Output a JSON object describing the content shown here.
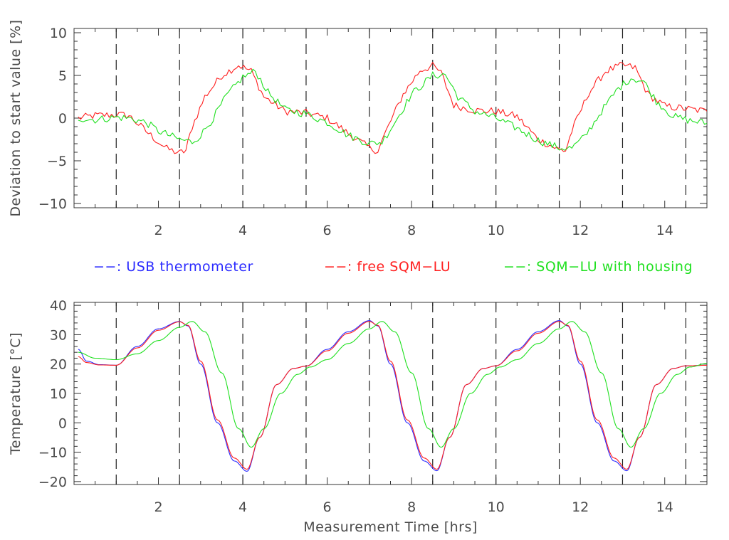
{
  "colors": {
    "usb": "#2b2bff",
    "free": "#ff2020",
    "housing": "#20e020",
    "axis": "#333333",
    "text": "#4a4a4a"
  },
  "legend": [
    {
      "key": "usb",
      "label": "−−: USB thermometer"
    },
    {
      "key": "free",
      "label": "−−: free SQM−LU"
    },
    {
      "key": "housing",
      "label": "−−: SQM−LU with housing"
    }
  ],
  "chart_data": [
    {
      "type": "line",
      "ylabel": "Deviation to start value [%]",
      "xlabel": "",
      "xlim": [
        0,
        15
      ],
      "ylim": [
        -10.5,
        10.5
      ],
      "xticks": [
        2,
        4,
        6,
        8,
        10,
        12,
        14
      ],
      "yticks": [
        10,
        5,
        0,
        -5,
        -10
      ],
      "ytick_labels": [
        "10",
        "5",
        "0",
        "−5",
        "−10"
      ],
      "vlines": [
        1,
        2.5,
        4,
        5.5,
        7,
        8.5,
        10,
        11.5,
        13,
        14.5
      ],
      "series": [
        {
          "key": "free",
          "color": "#ff2020",
          "x": [
            0.1,
            0.5,
            1.0,
            1.3,
            1.7,
            2.0,
            2.2,
            2.5,
            2.65,
            2.8,
            3.1,
            3.5,
            3.9,
            4.2,
            4.5,
            5.0,
            5.5,
            6.0,
            6.5,
            7.0,
            7.2,
            7.4,
            7.8,
            8.2,
            8.5,
            8.7,
            9.0,
            9.5,
            10.0,
            10.5,
            11.0,
            11.5,
            11.65,
            11.8,
            12.2,
            12.6,
            13.0,
            13.3,
            13.6,
            14.0,
            14.5,
            15.0
          ],
          "y": [
            0,
            0.3,
            0.4,
            0.3,
            -1.5,
            -2.8,
            -3.6,
            -4.1,
            -3.8,
            -1.0,
            2.5,
            5.0,
            6.2,
            5.5,
            2.5,
            0.8,
            0.6,
            0,
            -1.8,
            -3.5,
            -3.8,
            -1.5,
            2.8,
            5.6,
            6.1,
            5.3,
            1.5,
            0.9,
            0.8,
            0.2,
            -2.5,
            -3.7,
            -3.8,
            -1.5,
            3.0,
            5.5,
            6.2,
            5.9,
            2.8,
            1.4,
            1.1,
            0.8
          ]
        },
        {
          "key": "housing",
          "color": "#20e020",
          "x": [
            0.1,
            0.5,
            1.0,
            1.3,
            1.7,
            2.0,
            2.5,
            2.8,
            3.0,
            3.3,
            3.6,
            4.0,
            4.3,
            4.6,
            5.0,
            5.5,
            6.0,
            6.5,
            7.0,
            7.3,
            7.6,
            8.0,
            8.5,
            8.8,
            9.1,
            9.5,
            10.0,
            10.5,
            11.0,
            11.5,
            11.8,
            12.1,
            12.5,
            12.9,
            13.2,
            13.5,
            13.8,
            14.2,
            14.6,
            15.0
          ],
          "y": [
            0,
            -0.2,
            0.1,
            0.0,
            -0.5,
            -1.5,
            -2.5,
            -2.8,
            -2.0,
            0.0,
            2.5,
            4.8,
            5.5,
            3.0,
            1.0,
            0.5,
            -0.5,
            -2.0,
            -3.0,
            -2.8,
            -0.5,
            2.8,
            5.0,
            5.1,
            2.5,
            0.8,
            0.0,
            -1.2,
            -2.6,
            -3.5,
            -3.5,
            -2.2,
            0.8,
            3.5,
            4.7,
            4.3,
            2.0,
            0.2,
            -0.3,
            -0.6
          ]
        }
      ]
    },
    {
      "type": "line",
      "ylabel": "Temperature [°C]",
      "xlabel": "Measurement Time [hrs]",
      "xlim": [
        0,
        15
      ],
      "ylim": [
        -21,
        41
      ],
      "xticks": [
        2,
        4,
        6,
        8,
        10,
        12,
        14
      ],
      "yticks": [
        40,
        30,
        20,
        10,
        0,
        -10,
        -20
      ],
      "ytick_labels": [
        "40",
        "30",
        "20",
        "10",
        "0",
        "−10",
        "−20"
      ],
      "vlines": [
        1,
        2.5,
        4,
        5.5,
        7,
        8.5,
        10,
        11.5,
        13,
        14.5
      ],
      "series": [
        {
          "key": "usb",
          "color": "#2b2bff",
          "x": [
            0.1,
            0.3,
            0.6,
            1.0,
            1.5,
            2.0,
            2.5,
            2.7,
            3.0,
            3.4,
            3.8,
            4.1,
            4.4,
            4.8,
            5.2,
            5.5,
            6.0,
            6.5,
            7.0,
            7.2,
            7.5,
            7.9,
            8.3,
            8.6,
            8.9,
            9.3,
            9.7,
            10.0,
            10.5,
            11.0,
            11.5,
            11.7,
            12.0,
            12.4,
            12.8,
            13.1,
            13.4,
            13.8,
            14.2,
            14.5,
            15.0
          ],
          "y": [
            25,
            21,
            19.8,
            19.6,
            26,
            32,
            34.5,
            33,
            20,
            0,
            -13,
            -16.5,
            -5,
            13,
            18.5,
            19.3,
            25,
            31,
            34.8,
            33,
            20,
            0,
            -13,
            -16.3,
            -5,
            13,
            18.5,
            19.4,
            25,
            31,
            34.8,
            33,
            20,
            0,
            -13,
            -16.3,
            -5,
            13,
            18.5,
            19.4,
            19.6
          ]
        },
        {
          "key": "free",
          "color": "#ff2020",
          "x": [
            0.1,
            0.3,
            0.6,
            1.0,
            1.5,
            2.0,
            2.5,
            2.7,
            3.0,
            3.4,
            3.8,
            4.1,
            4.4,
            4.8,
            5.2,
            5.5,
            6.0,
            6.5,
            7.0,
            7.2,
            7.5,
            7.9,
            8.3,
            8.6,
            8.9,
            9.3,
            9.7,
            10.0,
            10.5,
            11.0,
            11.5,
            11.7,
            12.0,
            12.4,
            12.8,
            13.1,
            13.4,
            13.8,
            14.2,
            14.5,
            15.0
          ],
          "y": [
            22.5,
            20.5,
            19.7,
            19.6,
            25.5,
            31.5,
            34.4,
            33.2,
            21,
            1,
            -12,
            -15.8,
            -5,
            13,
            18.5,
            19.3,
            24.5,
            30.5,
            34.5,
            33.2,
            21,
            1,
            -12,
            -15.8,
            -5,
            13,
            18.5,
            19.4,
            24.5,
            30.5,
            34.5,
            33.2,
            21,
            1,
            -12,
            -15.8,
            -5,
            13,
            18.5,
            19.4,
            19.6
          ]
        },
        {
          "key": "housing",
          "color": "#20e020",
          "x": [
            0.1,
            0.5,
            1.0,
            1.5,
            2.0,
            2.5,
            2.8,
            3.1,
            3.5,
            3.9,
            4.2,
            4.5,
            4.9,
            5.3,
            5.6,
            6.0,
            6.5,
            7.0,
            7.3,
            7.6,
            8.0,
            8.4,
            8.7,
            9.0,
            9.4,
            9.8,
            10.1,
            10.5,
            11.0,
            11.5,
            11.8,
            12.1,
            12.5,
            12.9,
            13.2,
            13.5,
            13.9,
            14.3,
            14.6,
            15.0
          ],
          "y": [
            24,
            22,
            21.5,
            23.5,
            28,
            32.5,
            34.5,
            31,
            17,
            -2,
            -8.3,
            -2,
            10,
            16.5,
            19,
            21.5,
            27,
            32,
            34.5,
            31,
            17,
            -2,
            -8.3,
            -2,
            10,
            16.5,
            19,
            21.5,
            27,
            32,
            34.5,
            31,
            17,
            -2,
            -8.3,
            -2,
            10,
            16.5,
            19,
            20.2
          ]
        }
      ]
    }
  ]
}
